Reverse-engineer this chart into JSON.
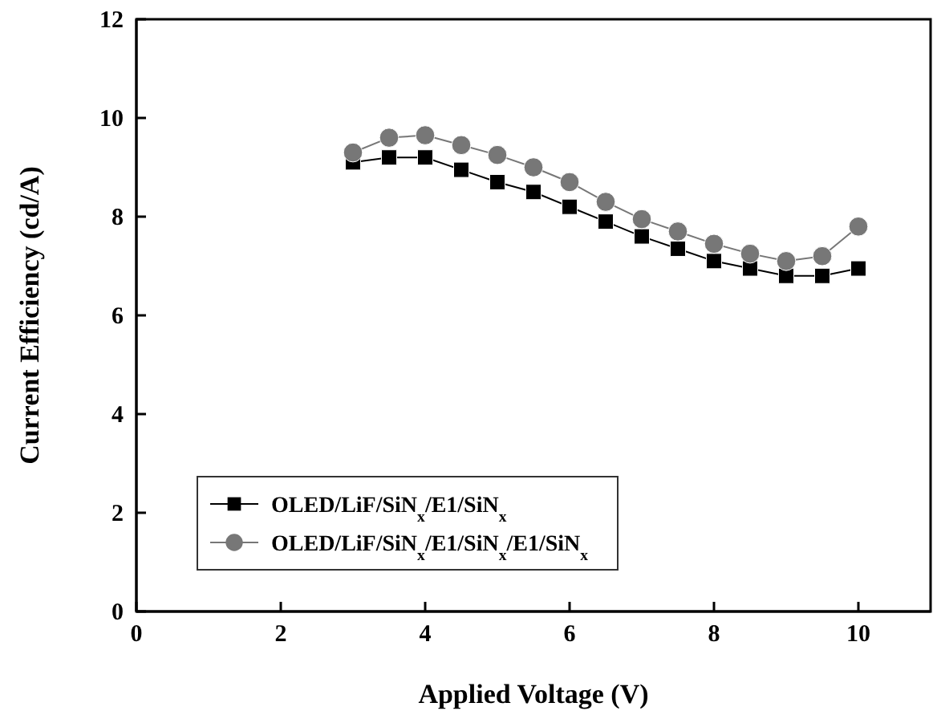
{
  "chart_data": {
    "type": "line",
    "xlabel": "Applied Voltage (V)",
    "ylabel": "Current Efficiency (cd/A)",
    "x": [
      3,
      3.5,
      4,
      4.5,
      5,
      5.5,
      6,
      6.5,
      7,
      7.5,
      8,
      8.5,
      9,
      9.5,
      10
    ],
    "xlim": [
      0,
      11
    ],
    "xticks": [
      0,
      2,
      4,
      6,
      8,
      10
    ],
    "ylim": [
      0,
      12
    ],
    "yticks": [
      0,
      2,
      4,
      6,
      8,
      10,
      12
    ],
    "legend": "bottom left",
    "grid": false,
    "series": [
      {
        "name": "OLED/LiF/SiN$_{x}$/E1/SiN$_{x}$",
        "color": "#000000",
        "marker": "square",
        "values": [
          9.1,
          9.2,
          9.2,
          8.95,
          8.7,
          8.5,
          8.2,
          7.9,
          7.6,
          7.35,
          7.1,
          6.95,
          6.8,
          6.8,
          6.95
        ]
      },
      {
        "name": "OLED/LiF/SiN$_{x}$/E1/SiN$_{x}$/E1/SiN$_{x}$",
        "color": "#777777",
        "marker": "circle",
        "values": [
          9.3,
          9.6,
          9.65,
          9.45,
          9.25,
          9.0,
          8.7,
          8.3,
          7.95,
          7.7,
          7.45,
          7.25,
          7.1,
          7.2,
          7.8
        ]
      }
    ]
  }
}
